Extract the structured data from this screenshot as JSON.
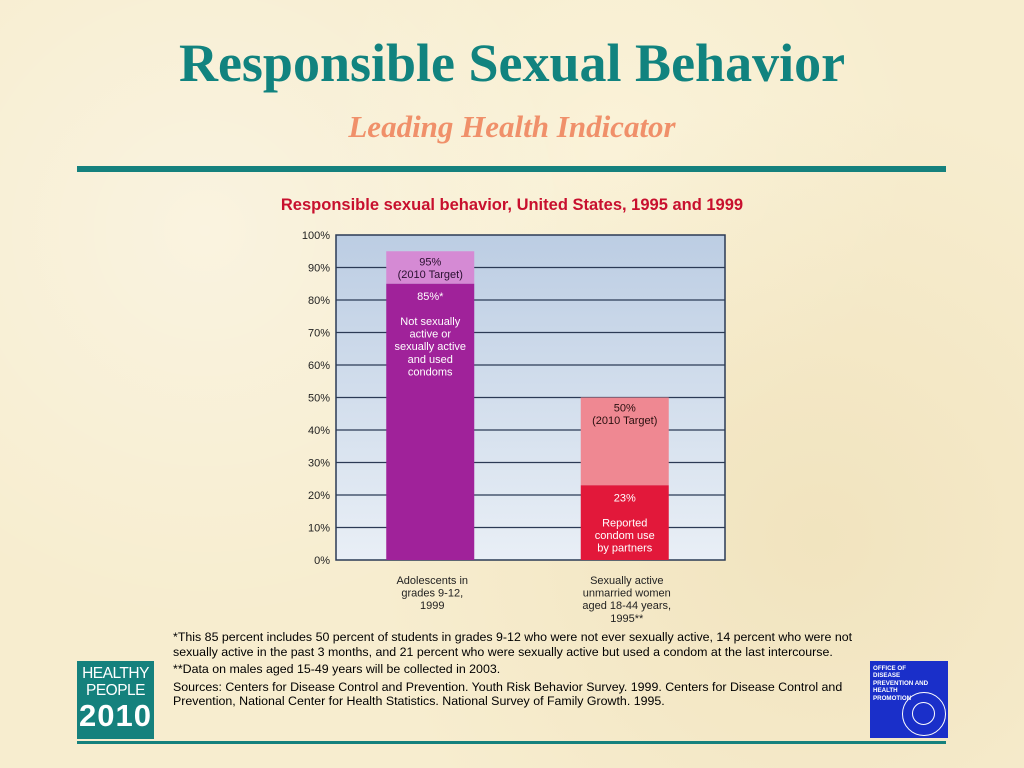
{
  "slide": {
    "title": "Responsible Sexual Behavior",
    "subtitle": "Leading Health Indicator"
  },
  "chart_data": {
    "type": "bar",
    "title": "Responsible sexual behavior, United States, 1995 and 1999",
    "ylim": [
      0,
      100
    ],
    "yticks": [
      0,
      10,
      20,
      30,
      40,
      50,
      60,
      70,
      80,
      90,
      100
    ],
    "ytick_labels": [
      "0%",
      "10%",
      "20%",
      "30%",
      "40%",
      "50%",
      "60%",
      "70%",
      "80%",
      "90%",
      "100%"
    ],
    "grid": true,
    "categories": [
      [
        "Adolescents in",
        "grades 9-12,",
        "1999"
      ],
      [
        "Sexually active",
        "unmarried women",
        "aged 18-44 years,",
        "1995**"
      ]
    ],
    "bars": [
      {
        "value": 85,
        "target": 95,
        "value_color": "#a0229a",
        "target_color": "#d58ad4",
        "value_label": [
          "85%*",
          "",
          "Not sexually",
          "active or",
          "sexually active",
          "and used",
          "condoms"
        ],
        "target_label": [
          "95%",
          "(2010 Target)"
        ]
      },
      {
        "value": 23,
        "target": 50,
        "value_color": "#e2183a",
        "target_color": "#ef8892",
        "value_label": [
          "23%",
          "",
          "Reported",
          "condom use",
          "by partners"
        ],
        "target_label": [
          "50%",
          "(2010 Target)"
        ]
      }
    ]
  },
  "footnotes": {
    "note1": "*This 85 percent includes 50 percent of students in grades 9-12 who were not ever sexually active, 14 percent who were not sexually active in the past 3 months, and 21 percent who were sexually active but used a condom at the last intercourse.",
    "note2": "**Data on males aged 15-49 years will be collected in 2003.",
    "sources": "Sources: Centers for Disease Control and Prevention. Youth Risk Behavior Survey. 1999. Centers for Disease Control and Prevention, National Center for Health Statistics. National Survey of Family Growth. 1995."
  },
  "logos": {
    "healthy_people": {
      "line1": "HEALTHY",
      "line2": "PEOPLE",
      "line3": "2010"
    },
    "odphp": {
      "line1": "Office of",
      "line2": "Disease",
      "line3": "Prevention and",
      "line4": "Health",
      "line5": "Promotion"
    }
  }
}
